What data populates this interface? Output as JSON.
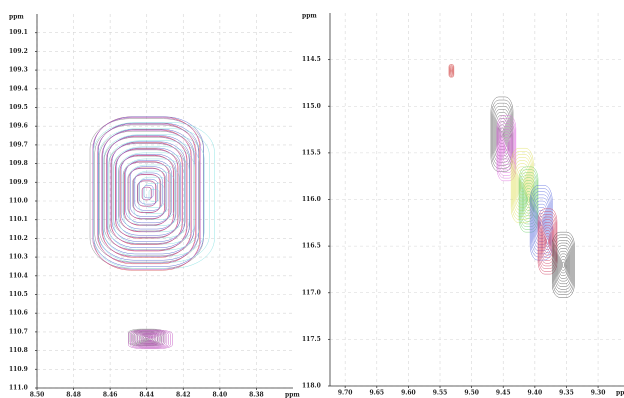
{
  "chart_data": [
    {
      "type": "contour",
      "y_label": "ppm",
      "x_label": "ppm",
      "grid": true,
      "levels": 12,
      "xlim": [
        8.5,
        8.36
      ],
      "ylim": [
        111.0,
        109.0
      ],
      "xticks": [
        {
          "value": 8.5,
          "label": "8.50"
        },
        8.48,
        8.46,
        8.44,
        8.42,
        {
          "value": 8.4,
          "label": "8.40"
        },
        8.38
      ],
      "yticks": [
        109.1,
        109.2,
        109.3,
        109.4,
        109.5,
        109.6,
        109.7,
        109.8,
        109.9,
        {
          "value": 110.0,
          "label": "110.0"
        },
        110.1,
        110.2,
        110.3,
        110.4,
        110.5,
        110.6,
        110.7,
        110.8,
        110.9,
        {
          "value": 111.0,
          "label": "111.0"
        }
      ],
      "peaks": [
        {
          "x": 8.44,
          "y": 109.96,
          "x_width": 0.062,
          "y_width": 0.8,
          "color": "#808080"
        },
        {
          "x": 8.44,
          "y": 109.96,
          "x_width": 0.058,
          "y_width": 0.82,
          "color": "#d04040"
        },
        {
          "x": 8.439,
          "y": 109.95,
          "x_width": 0.06,
          "y_width": 0.8,
          "color": "#5060d0"
        },
        {
          "x": 8.436,
          "y": 109.97,
          "x_width": 0.066,
          "y_width": 0.78,
          "color": "#80e0e0"
        },
        {
          "x": 8.44,
          "y": 109.96,
          "x_width": 0.059,
          "y_width": 0.81,
          "color": "#c050c0"
        },
        {
          "x": 8.44,
          "y": 110.73,
          "x_width": 0.02,
          "y_width": 0.09,
          "color": "#808080"
        },
        {
          "x": 8.438,
          "y": 110.74,
          "x_width": 0.024,
          "y_width": 0.1,
          "color": "#c050c0"
        }
      ]
    },
    {
      "type": "contour",
      "y_label": "ppm",
      "x_label": "ppm",
      "grid": true,
      "levels": 12,
      "xlim": [
        9.724,
        9.259
      ],
      "ylim": [
        118.0,
        114.0
      ],
      "xticks": [
        {
          "value": 9.7,
          "label": "9.70"
        },
        9.65,
        {
          "value": 9.6,
          "label": "9.60"
        },
        9.55,
        {
          "value": 9.5,
          "label": "9.50"
        },
        9.45,
        {
          "value": 9.4,
          "label": "9.40"
        },
        9.35,
        {
          "value": 9.3,
          "label": "9.30"
        }
      ],
      "yticks": [
        114.5,
        {
          "value": 115.0,
          "label": "115.0"
        },
        115.5,
        {
          "value": 116.0,
          "label": "116.0"
        },
        116.5,
        {
          "value": 117.0,
          "label": "117.0"
        },
        117.5,
        {
          "value": 118.0,
          "label": "118.0"
        }
      ],
      "peaks": [
        {
          "x": 9.532,
          "y": 114.62,
          "x_width": 0.008,
          "y_width": 0.14,
          "color": "#e08080"
        },
        {
          "x": 9.452,
          "y": 115.3,
          "x_width": 0.035,
          "y_width": 0.8,
          "color": "#606060"
        },
        {
          "x": 9.445,
          "y": 115.45,
          "x_width": 0.03,
          "y_width": 0.7,
          "color": "#e070e0"
        },
        {
          "x": 9.42,
          "y": 115.85,
          "x_width": 0.035,
          "y_width": 0.8,
          "color": "#e0e060"
        },
        {
          "x": 9.41,
          "y": 116.0,
          "x_width": 0.03,
          "y_width": 0.7,
          "color": "#70d070"
        },
        {
          "x": 9.39,
          "y": 116.25,
          "x_width": 0.035,
          "y_width": 0.8,
          "color": "#6070e0"
        },
        {
          "x": 9.38,
          "y": 116.45,
          "x_width": 0.03,
          "y_width": 0.7,
          "color": "#d04060"
        },
        {
          "x": 9.355,
          "y": 116.7,
          "x_width": 0.035,
          "y_width": 0.7,
          "color": "#505050"
        }
      ]
    }
  ]
}
